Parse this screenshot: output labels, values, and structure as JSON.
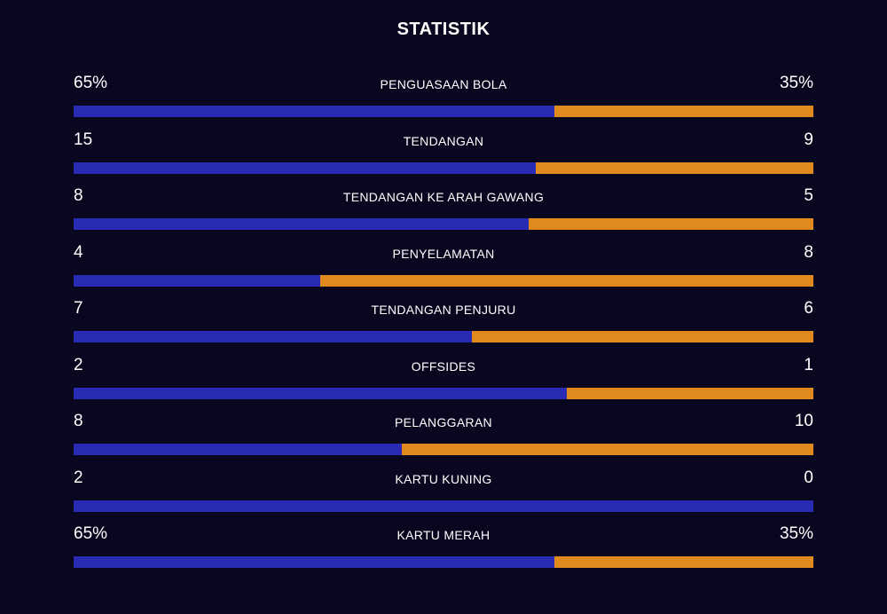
{
  "title": "STATISTIK",
  "colors": {
    "background": "#08071f",
    "home": "#2a2bb5",
    "away": "#e08a1e",
    "text": "#ffffff"
  },
  "stats": [
    {
      "label": "PENGUASAAN BOLA",
      "home": "65%",
      "away": "35%",
      "home_share": 0.65
    },
    {
      "label": "TENDANGAN",
      "home": "15",
      "away": "9",
      "home_share": 0.625
    },
    {
      "label": "TENDANGAN KE ARAH GAWANG",
      "home": "8",
      "away": "5",
      "home_share": 0.615
    },
    {
      "label": "PENYELAMATAN",
      "home": "4",
      "away": "8",
      "home_share": 0.333
    },
    {
      "label": "TENDANGAN PENJURU",
      "home": "7",
      "away": "6",
      "home_share": 0.538
    },
    {
      "label": "OFFSIDES",
      "home": "2",
      "away": "1",
      "home_share": 0.667
    },
    {
      "label": "PELANGGARAN",
      "home": "8",
      "away": "10",
      "home_share": 0.444
    },
    {
      "label": "KARTU KUNING",
      "home": "2",
      "away": "0",
      "home_share": 1.0
    },
    {
      "label": "KARTU MERAH",
      "home": "65%",
      "away": "35%",
      "home_share": 0.65
    }
  ]
}
